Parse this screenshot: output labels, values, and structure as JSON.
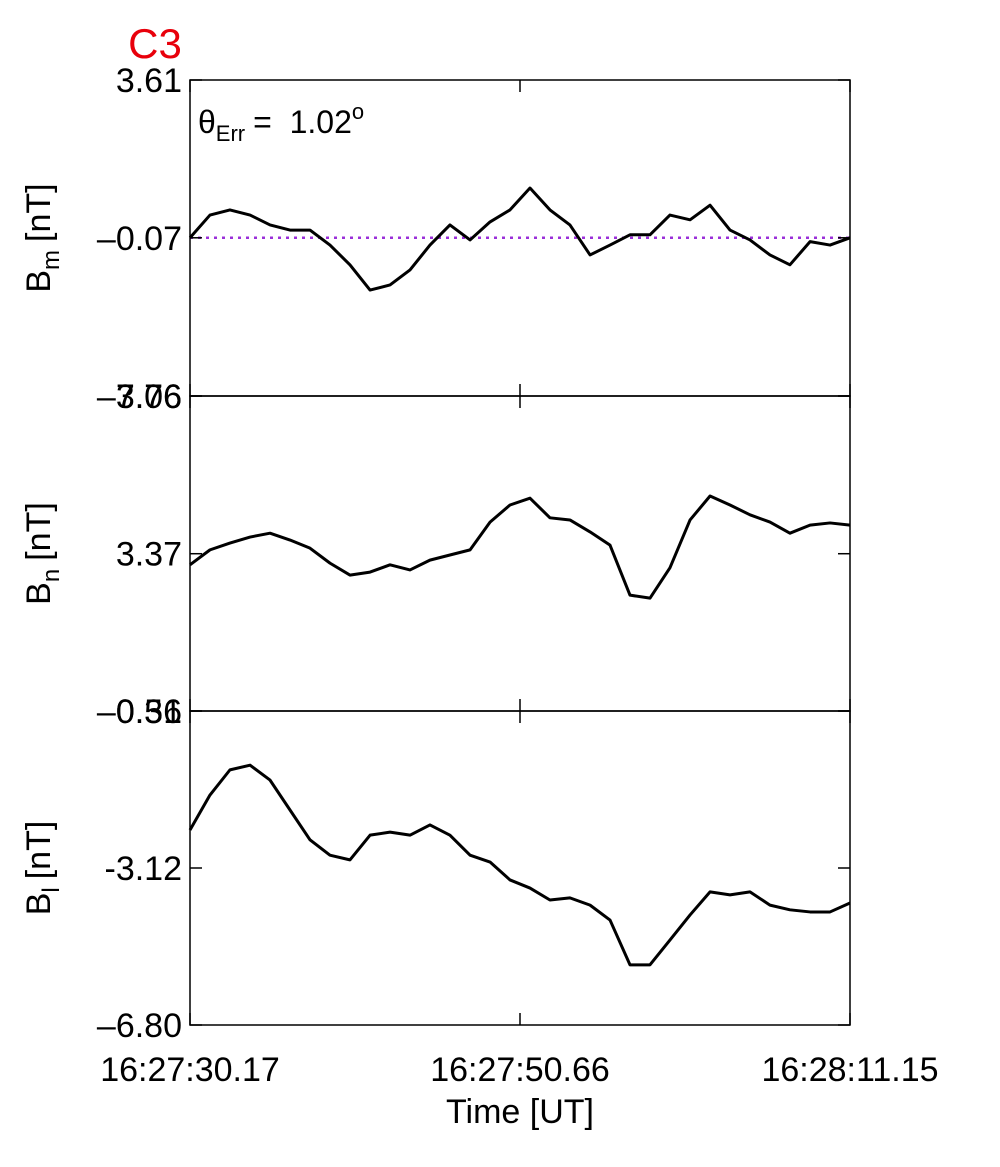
{
  "chart_data": [
    {
      "type": "line",
      "title": "C3",
      "annotation": {
        "symbol": "θ",
        "sub": "Err",
        "text": "=  1.02",
        "sup": "o"
      },
      "ylabel": "B",
      "ylabel_sub": "m",
      "ylabel_unit": "[nT]",
      "ylim": [
        -3.76,
        3.61
      ],
      "yticks": [
        {
          "value": -3.76,
          "label": "–3.76"
        },
        {
          "value": -0.07,
          "label": "–0.07"
        },
        3.61
      ],
      "hline": -0.07,
      "hline_color": "#9b30d9",
      "color": "#000000",
      "xlim": [
        59250.17,
        59291.15
      ],
      "xticks": [
        59250.17,
        59270.66,
        59291.15
      ],
      "x": [
        59250.17,
        59251.41,
        59252.65,
        59253.9,
        59255.14,
        59256.38,
        59257.62,
        59258.86,
        59260.1,
        59261.35,
        59262.59,
        59263.83,
        59265.07,
        59266.31,
        59267.56,
        59268.8,
        59270.04,
        59271.28,
        59272.52,
        59273.76,
        59275.01,
        59276.25,
        59277.49,
        59278.73,
        59279.97,
        59281.22,
        59282.46,
        59283.7,
        59284.94,
        59286.18,
        59287.42,
        59288.67,
        59289.91,
        59291.15
      ],
      "values": [
        -0.07,
        0.46,
        0.58,
        0.46,
        0.23,
        0.11,
        0.11,
        -0.24,
        -0.7,
        -1.29,
        -1.17,
        -0.82,
        -0.24,
        0.23,
        -0.12,
        0.3,
        0.58,
        1.09,
        0.58,
        0.23,
        -0.47,
        -0.24,
        0.0,
        0.0,
        0.46,
        0.35,
        0.69,
        0.11,
        -0.12,
        -0.47,
        -0.7,
        -0.16,
        -0.24,
        -0.07
      ]
    },
    {
      "type": "line",
      "ylabel": "B",
      "ylabel_sub": "n",
      "ylabel_unit": "[nT]",
      "ylim": [
        -0.31,
        7.06
      ],
      "yticks": [
        {
          "value": -0.31,
          "label": "–0.31"
        },
        3.37,
        7.06
      ],
      "color": "#000000",
      "xlim": [
        59250.17,
        59291.15
      ],
      "xticks": [
        59250.17,
        59270.66,
        59291.15
      ],
      "x": [
        59250.17,
        59251.41,
        59252.65,
        59253.9,
        59255.14,
        59256.38,
        59257.62,
        59258.86,
        59260.1,
        59261.35,
        59262.59,
        59263.83,
        59265.07,
        59266.31,
        59267.56,
        59268.8,
        59270.04,
        59271.28,
        59272.52,
        59273.76,
        59275.01,
        59276.25,
        59277.49,
        59278.73,
        59279.97,
        59281.22,
        59282.46,
        59283.7,
        59284.94,
        59286.18,
        59287.42,
        59288.67,
        59289.91,
        59291.15
      ],
      "values": [
        3.11,
        3.46,
        3.62,
        3.76,
        3.85,
        3.69,
        3.5,
        3.15,
        2.87,
        2.94,
        3.11,
        2.99,
        3.22,
        3.34,
        3.46,
        4.11,
        4.51,
        4.67,
        4.21,
        4.16,
        3.88,
        3.57,
        2.4,
        2.33,
        3.04,
        4.16,
        4.72,
        4.51,
        4.28,
        4.11,
        3.85,
        4.04,
        4.09,
        4.04
      ]
    },
    {
      "type": "line",
      "ylabel": "B",
      "ylabel_sub": "l",
      "ylabel_unit": "[nT]",
      "ylim": [
        -6.8,
        0.56
      ],
      "yticks": [
        {
          "value": -6.8,
          "label": "–6.80"
        },
        -3.12,
        0.56
      ],
      "color": "#000000",
      "xlabel": "Time [UT]",
      "xlim": [
        59250.17,
        59291.15
      ],
      "xticks": [
        {
          "value": 59250.17,
          "label": "16:27:30.17"
        },
        {
          "value": 59270.66,
          "label": "16:27:50.66"
        },
        {
          "value": 59291.15,
          "label": "16:28:11.15"
        }
      ],
      "x": [
        59250.17,
        59251.41,
        59252.65,
        59253.9,
        59255.14,
        59256.38,
        59257.62,
        59258.86,
        59260.1,
        59261.35,
        59262.59,
        59263.83,
        59265.07,
        59266.31,
        59267.56,
        59268.8,
        59270.04,
        59271.28,
        59272.52,
        59273.76,
        59275.01,
        59276.25,
        59277.49,
        59278.73,
        59279.97,
        59281.22,
        59282.46,
        59283.7,
        59284.94,
        59286.18,
        59287.42,
        59288.67,
        59289.91,
        59291.15
      ],
      "values": [
        -2.23,
        -1.41,
        -0.82,
        -0.71,
        -1.06,
        -1.76,
        -2.46,
        -2.82,
        -2.93,
        -2.35,
        -2.28,
        -2.35,
        -2.11,
        -2.35,
        -2.82,
        -2.98,
        -3.4,
        -3.59,
        -3.87,
        -3.82,
        -3.99,
        -4.34,
        -5.39,
        -5.39,
        -4.81,
        -4.22,
        -3.68,
        -3.75,
        -3.68,
        -3.99,
        -4.1,
        -4.15,
        -4.15,
        -3.94
      ]
    }
  ]
}
